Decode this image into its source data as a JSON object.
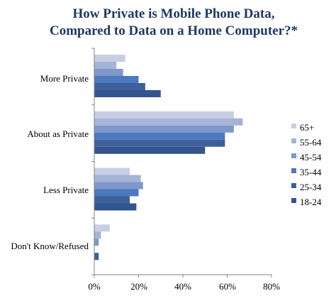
{
  "chart_data": {
    "type": "bar",
    "orientation": "horizontal",
    "title_lines": [
      "How Private is Mobile Phone Data,",
      "Compared to Data on a Home Computer?*"
    ],
    "xlabel": "",
    "ylabel": "",
    "xlim": [
      0,
      80
    ],
    "x_ticks": [
      "0%",
      "20%",
      "40%",
      "60%",
      "80%"
    ],
    "categories": [
      "More Private",
      "About as Private",
      "Less Private",
      "Don't Know/Refused"
    ],
    "series": [
      {
        "name": "65+",
        "color": "#c6cfe3",
        "values": [
          14,
          63,
          16,
          7
        ]
      },
      {
        "name": "55-64",
        "color": "#a4b4d8",
        "values": [
          10,
          67,
          21,
          3
        ]
      },
      {
        "name": "45-54",
        "color": "#7f97cb",
        "values": [
          13,
          63,
          22,
          2
        ]
      },
      {
        "name": "35-44",
        "color": "#4d79bf",
        "values": [
          20,
          59,
          20,
          0
        ]
      },
      {
        "name": "25-34",
        "color": "#3d5f9a",
        "values": [
          23,
          59,
          16,
          2
        ]
      },
      {
        "name": "18-24",
        "color": "#34548f",
        "values": [
          30,
          50,
          19,
          0
        ]
      }
    ],
    "legend_position": "right",
    "grid": false
  }
}
